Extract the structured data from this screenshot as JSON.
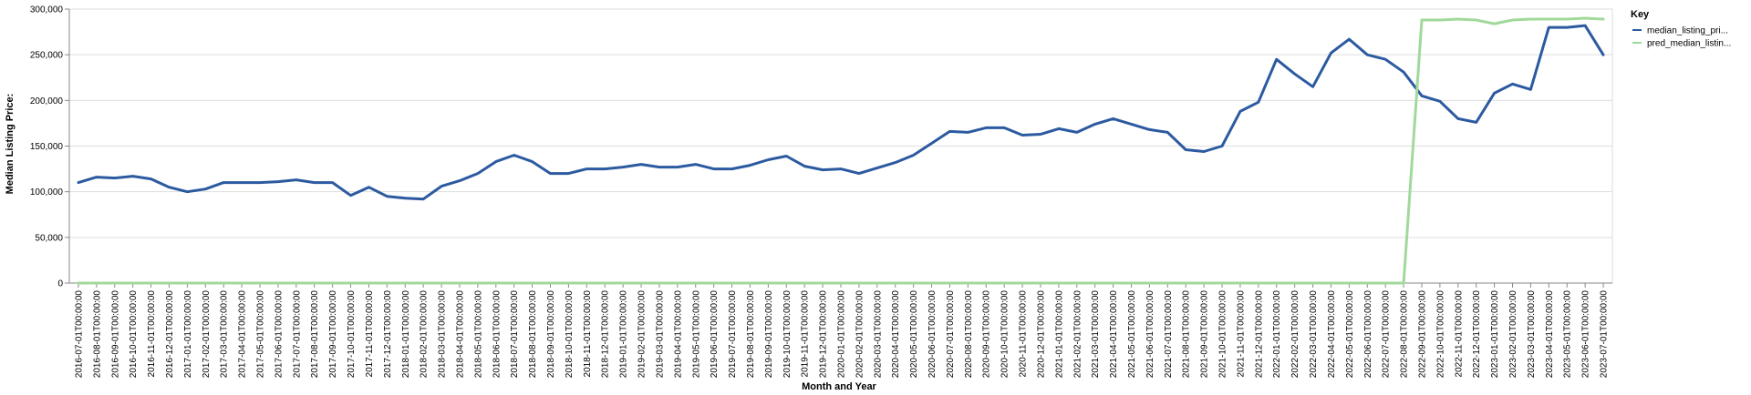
{
  "chart_data": {
    "type": "line",
    "xlabel": "Month and Year",
    "ylabel": "Median Listing Price:",
    "ylim": [
      0,
      300000
    ],
    "yticks": [
      "0",
      "50,000",
      "100,000",
      "150,000",
      "200,000",
      "250,000",
      "300,000"
    ],
    "grid": true,
    "legend": {
      "title": "Key",
      "placement": "right"
    },
    "x": [
      "2016-07-01T00:00:00",
      "2016-08-01T00:00:00",
      "2016-09-01T00:00:00",
      "2016-10-01T00:00:00",
      "2016-11-01T00:00:00",
      "2016-12-01T00:00:00",
      "2017-01-01T00:00:00",
      "2017-02-01T00:00:00",
      "2017-03-01T00:00:00",
      "2017-04-01T00:00:00",
      "2017-05-01T00:00:00",
      "2017-06-01T00:00:00",
      "2017-07-01T00:00:00",
      "2017-08-01T00:00:00",
      "2017-09-01T00:00:00",
      "2017-10-01T00:00:00",
      "2017-11-01T00:00:00",
      "2017-12-01T00:00:00",
      "2018-01-01T00:00:00",
      "2018-02-01T00:00:00",
      "2018-03-01T00:00:00",
      "2018-04-01T00:00:00",
      "2018-05-01T00:00:00",
      "2018-06-01T00:00:00",
      "2018-07-01T00:00:00",
      "2018-08-01T00:00:00",
      "2018-09-01T00:00:00",
      "2018-10-01T00:00:00",
      "2018-11-01T00:00:00",
      "2018-12-01T00:00:00",
      "2019-01-01T00:00:00",
      "2019-02-01T00:00:00",
      "2019-03-01T00:00:00",
      "2019-04-01T00:00:00",
      "2019-05-01T00:00:00",
      "2019-06-01T00:00:00",
      "2019-07-01T00:00:00",
      "2019-08-01T00:00:00",
      "2019-09-01T00:00:00",
      "2019-10-01T00:00:00",
      "2019-11-01T00:00:00",
      "2019-12-01T00:00:00",
      "2020-01-01T00:00:00",
      "2020-02-01T00:00:00",
      "2020-03-01T00:00:00",
      "2020-04-01T00:00:00",
      "2020-05-01T00:00:00",
      "2020-06-01T00:00:00",
      "2020-07-01T00:00:00",
      "2020-08-01T00:00:00",
      "2020-09-01T00:00:00",
      "2020-10-01T00:00:00",
      "2020-11-01T00:00:00",
      "2020-12-01T00:00:00",
      "2021-01-01T00:00:00",
      "2021-02-01T00:00:00",
      "2021-03-01T00:00:00",
      "2021-04-01T00:00:00",
      "2021-05-01T00:00:00",
      "2021-06-01T00:00:00",
      "2021-07-01T00:00:00",
      "2021-08-01T00:00:00",
      "2021-09-01T00:00:00",
      "2021-10-01T00:00:00",
      "2021-11-01T00:00:00",
      "2021-12-01T00:00:00",
      "2022-01-01T00:00:00",
      "2022-02-01T00:00:00",
      "2022-03-01T00:00:00",
      "2022-04-01T00:00:00",
      "2022-05-01T00:00:00",
      "2022-06-01T00:00:00",
      "2022-07-01T00:00:00",
      "2022-08-01T00:00:00",
      "2022-09-01T00:00:00",
      "2022-10-01T00:00:00",
      "2022-11-01T00:00:00",
      "2022-12-01T00:00:00",
      "2023-01-01T00:00:00",
      "2023-02-01T00:00:00",
      "2023-03-01T00:00:00",
      "2023-04-01T00:00:00",
      "2023-05-01T00:00:00",
      "2023-06-01T00:00:00",
      "2023-07-01T00:00:00"
    ],
    "series": [
      {
        "name": "median_listing_pri...",
        "color": "#2c5aa0",
        "values": [
          110000,
          116000,
          115000,
          117000,
          114000,
          105000,
          100000,
          103000,
          110000,
          110000,
          110000,
          111000,
          113000,
          110000,
          110000,
          96000,
          105000,
          95000,
          93000,
          92000,
          106000,
          112000,
          120000,
          133000,
          140000,
          133000,
          120000,
          120000,
          125000,
          125000,
          127000,
          130000,
          127000,
          127000,
          130000,
          125000,
          125000,
          129000,
          135000,
          139000,
          128000,
          124000,
          125000,
          120000,
          126000,
          132000,
          140000,
          153000,
          166000,
          165000,
          170000,
          170000,
          162000,
          163000,
          169000,
          165000,
          174000,
          180000,
          174000,
          168000,
          165000,
          146000,
          144000,
          150000,
          188000,
          198000,
          245000,
          229000,
          215000,
          252000,
          267000,
          250000,
          245000,
          231000,
          205000,
          199000,
          180000,
          176000,
          208000,
          218000,
          212000,
          280000,
          280000,
          282000,
          250000
        ]
      },
      {
        "name": "pred_median_listin...",
        "color": "#a1d99b",
        "values": [
          0,
          0,
          0,
          0,
          0,
          0,
          0,
          0,
          0,
          0,
          0,
          0,
          0,
          0,
          0,
          0,
          0,
          0,
          0,
          0,
          0,
          0,
          0,
          0,
          0,
          0,
          0,
          0,
          0,
          0,
          0,
          0,
          0,
          0,
          0,
          0,
          0,
          0,
          0,
          0,
          0,
          0,
          0,
          0,
          0,
          0,
          0,
          0,
          0,
          0,
          0,
          0,
          0,
          0,
          0,
          0,
          0,
          0,
          0,
          0,
          0,
          0,
          0,
          0,
          0,
          0,
          0,
          0,
          0,
          0,
          0,
          0,
          0,
          0,
          288000,
          288000,
          289000,
          288000,
          284000,
          288000,
          289000,
          289000,
          289000,
          290000,
          289000
        ]
      }
    ]
  }
}
